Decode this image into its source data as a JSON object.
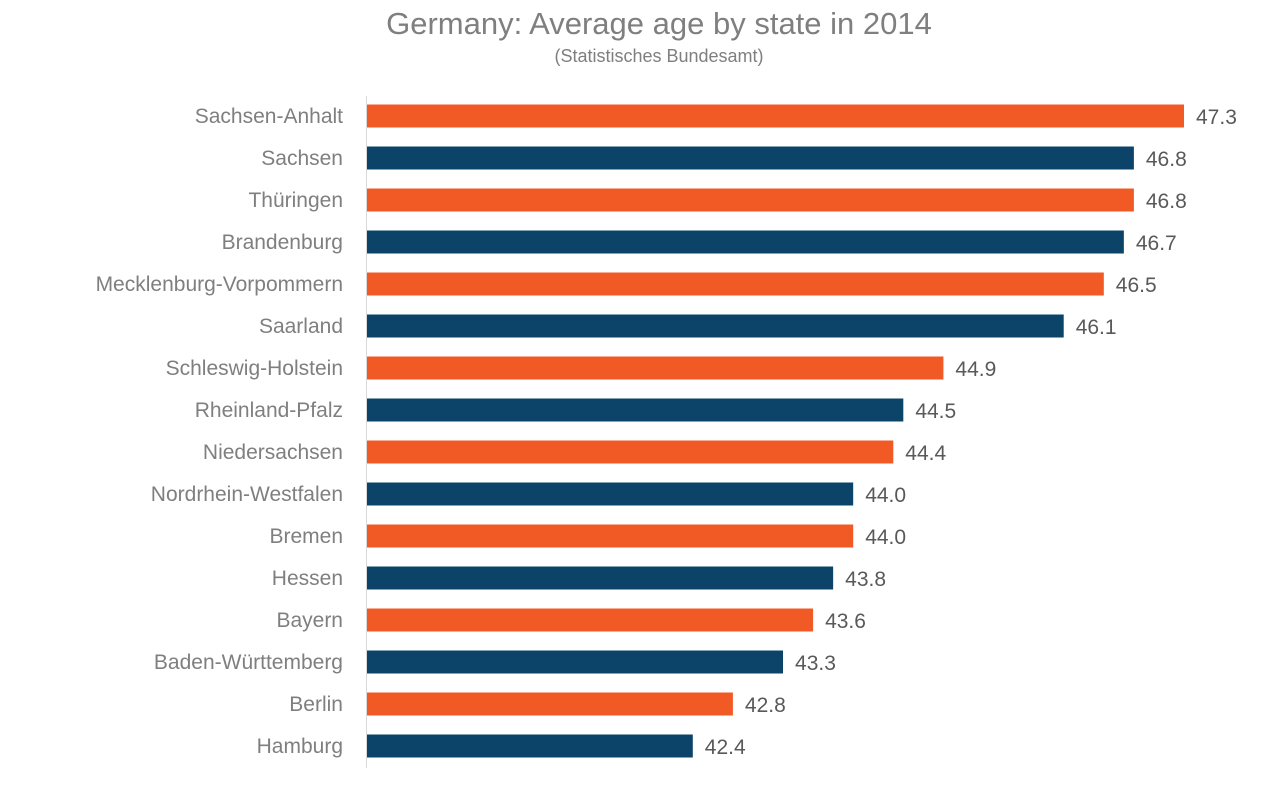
{
  "chart_data": {
    "type": "bar",
    "orientation": "horizontal",
    "title": "Germany: Average age by state in 2014",
    "subtitle": "(Statistisches Bundesamt)",
    "xlabel": "",
    "ylabel": "",
    "grid": false,
    "categories": [
      "Sachsen-Anhalt",
      "Sachsen",
      "Thüringen",
      "Brandenburg",
      "Mecklenburg-Vorpommern",
      "Saarland",
      "Schleswig-Holstein",
      "Rheinland-Pfalz",
      "Niedersachsen",
      "Nordrhein-Westfalen",
      "Bremen",
      "Hessen",
      "Bayern",
      "Baden-Württemberg",
      "Berlin",
      "Hamburg"
    ],
    "values": [
      47.3,
      46.8,
      46.8,
      46.7,
      46.5,
      46.1,
      44.9,
      44.5,
      44.4,
      44.0,
      44.0,
      43.8,
      43.6,
      43.3,
      42.8,
      42.4
    ],
    "value_labels": [
      "47.3",
      "46.8",
      "46.8",
      "46.7",
      "46.5",
      "46.1",
      "44.9",
      "44.5",
      "44.4",
      "44.0",
      "44.0",
      "43.8",
      "43.6",
      "43.3",
      "42.8",
      "42.4"
    ],
    "xlim": [
      39.15,
      47.3
    ],
    "colors": [
      "#f15a24",
      "#0b4468"
    ]
  }
}
